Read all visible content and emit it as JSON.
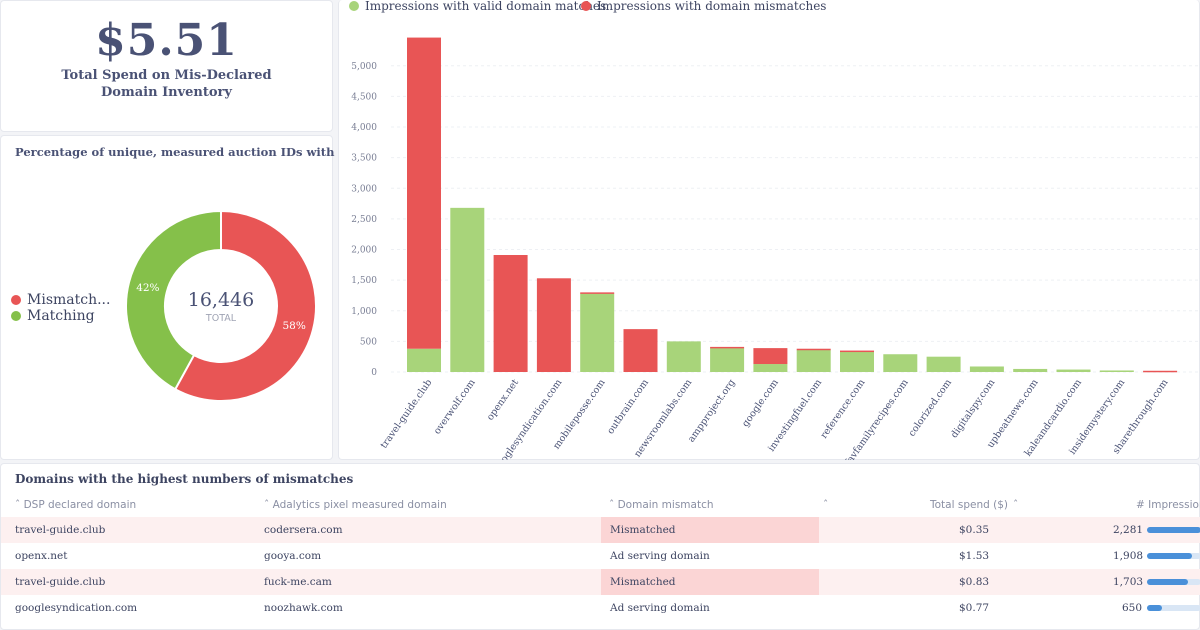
{
  "kpi": {
    "value": "$5.51",
    "label": "Total Spend on Mis-Declared Domain Inventory"
  },
  "donut": {
    "title": "Percentage of unique, measured auction IDs with domain ...",
    "total_value": "16,446",
    "total_label": "TOTAL",
    "legend": [
      {
        "label": "Mismatch...",
        "color": "#e85555"
      },
      {
        "label": "Matching",
        "color": "#85c04a"
      }
    ],
    "slices": [
      {
        "name": "Mismatch...",
        "percent": 58,
        "label": "58%",
        "color": "#e85555"
      },
      {
        "name": "Matching",
        "percent": 42,
        "label": "42%",
        "color": "#85c04a"
      }
    ]
  },
  "chart_data": {
    "type": "bar",
    "stacked": true,
    "legend": [
      {
        "label": "Impressions with valid domain matches",
        "color": "#a8d47a"
      },
      {
        "label": "Impressions with domain mismatches",
        "color": "#e85555"
      }
    ],
    "categories": [
      "travel-guide.club",
      "overwolf.com",
      "openx.net",
      "googlesyndication.com",
      "mobileposse.com",
      "outbrain.com",
      "newsroomlabs.com",
      "ampproject.org",
      "google.com",
      "investingfuel.com",
      "reference.com",
      "favfamilyrecipes.com",
      "colorized.com",
      "digitalspy.com",
      "upbeatnews.com",
      "kaleandcardio.com",
      "insidemystery.com",
      "sharethrough.com"
    ],
    "series": [
      {
        "name": "Impressions with valid domain matches",
        "color": "#a8d47a",
        "values": [
          380,
          2680,
          0,
          0,
          1280,
          0,
          500,
          390,
          130,
          360,
          330,
          290,
          250,
          90,
          50,
          40,
          25,
          0
        ]
      },
      {
        "name": "Impressions with domain mismatches",
        "color": "#e85555",
        "values": [
          5080,
          0,
          1910,
          1530,
          20,
          700,
          0,
          20,
          260,
          20,
          20,
          0,
          0,
          0,
          0,
          0,
          0,
          20
        ]
      }
    ],
    "yticks": [
      "0",
      "500",
      "1,000",
      "1,500",
      "2,000",
      "2,500",
      "3,000",
      "3,500",
      "4,000",
      "4,500",
      "5,000"
    ],
    "ylim": [
      0,
      5600
    ],
    "grid": true,
    "legend_position": "top"
  },
  "table": {
    "title": "Domains with the highest numbers of mismatches",
    "headers": [
      "DSP declared domain",
      "Adalytics pixel measured domain",
      "Domain mismatch",
      "Total spend ($)",
      "# Impressions"
    ],
    "rows": [
      {
        "declared": "travel-guide.club",
        "measured": "codersera.com",
        "mismatch": "Mismatched",
        "spend": "$0.35",
        "impressions": "2,281",
        "fraction": 1.0
      },
      {
        "declared": "openx.net",
        "measured": "gooya.com",
        "mismatch": "Ad serving domain",
        "spend": "$1.53",
        "impressions": "1,908",
        "fraction": 0.84
      },
      {
        "declared": "travel-guide.club",
        "measured": "fuck-me.cam",
        "mismatch": "Mismatched",
        "spend": "$0.83",
        "impressions": "1,703",
        "fraction": 0.75
      },
      {
        "declared": "googlesyndication.com",
        "measured": "noozhawk.com",
        "mismatch": "Ad serving domain",
        "spend": "$0.77",
        "impressions": "650",
        "fraction": 0.28
      }
    ]
  }
}
